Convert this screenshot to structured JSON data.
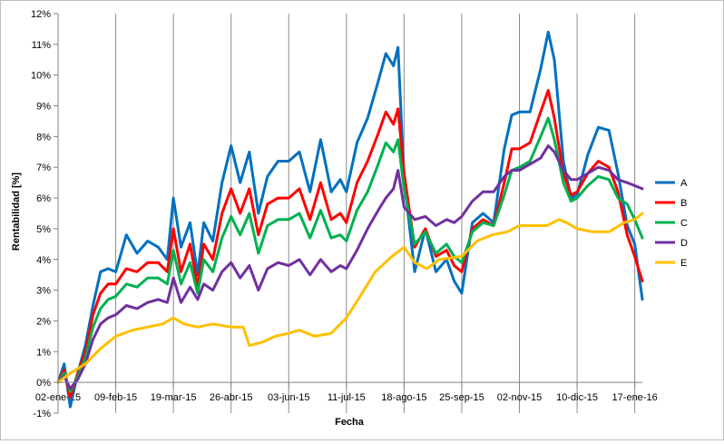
{
  "chart_data": {
    "type": "line",
    "xlabel": "Fecha",
    "ylabel": "Rentabilidad  [%]",
    "ylim": [
      -1,
      12
    ],
    "y_ticks": [
      -1,
      0,
      1,
      2,
      3,
      4,
      5,
      6,
      7,
      8,
      9,
      10,
      11,
      12
    ],
    "y_tick_labels": [
      "-1%",
      "0%",
      "1%",
      "2%",
      "3%",
      "4%",
      "5%",
      "6%",
      "7%",
      "8%",
      "9%",
      "10%",
      "11%",
      "12%"
    ],
    "x_tick_dates": [
      "2015-01-02",
      "2015-02-09",
      "2015-03-19",
      "2015-04-26",
      "2015-06-03",
      "2015-07-11",
      "2015-08-18",
      "2015-09-25",
      "2015-11-02",
      "2015-12-10",
      "2016-01-17"
    ],
    "x_tick_labels": [
      "02-ene-15",
      "09-feb-15",
      "19-mar-15",
      "26-abr-15",
      "03-jun-15",
      "11-jul-15",
      "18-ago-15",
      "25-sep-15",
      "02-nov-15",
      "10-dic-15",
      "17-ene-16"
    ],
    "xlim": [
      "2015-01-02",
      "2016-01-22"
    ],
    "grid": "vertical",
    "legend_position": "right",
    "series": [
      {
        "name": "A",
        "color": "#0070C0",
        "x": [
          "2015-01-02",
          "2015-01-06",
          "2015-01-10",
          "2015-01-15",
          "2015-01-20",
          "2015-01-25",
          "2015-01-30",
          "2015-02-04",
          "2015-02-09",
          "2015-02-16",
          "2015-02-23",
          "2015-03-02",
          "2015-03-09",
          "2015-03-15",
          "2015-03-19",
          "2015-03-24",
          "2015-03-30",
          "2015-04-04",
          "2015-04-08",
          "2015-04-14",
          "2015-04-20",
          "2015-04-26",
          "2015-05-02",
          "2015-05-08",
          "2015-05-14",
          "2015-05-20",
          "2015-05-27",
          "2015-06-03",
          "2015-06-10",
          "2015-06-17",
          "2015-06-24",
          "2015-07-01",
          "2015-07-07",
          "2015-07-11",
          "2015-07-18",
          "2015-07-25",
          "2015-08-01",
          "2015-08-06",
          "2015-08-11",
          "2015-08-14",
          "2015-08-18",
          "2015-08-25",
          "2015-09-01",
          "2015-09-08",
          "2015-09-15",
          "2015-09-20",
          "2015-09-25",
          "2015-10-02",
          "2015-10-09",
          "2015-10-16",
          "2015-10-23",
          "2015-10-28",
          "2015-11-02",
          "2015-11-09",
          "2015-11-16",
          "2015-11-21",
          "2015-11-25",
          "2015-12-01",
          "2015-12-06",
          "2015-12-10",
          "2015-12-17",
          "2015-12-24",
          "2015-12-31",
          "2016-01-06",
          "2016-01-12",
          "2016-01-17",
          "2016-01-22"
        ],
        "values": [
          0,
          0.6,
          -0.8,
          0.3,
          1.2,
          2.5,
          3.6,
          3.7,
          3.6,
          4.8,
          4.2,
          4.6,
          4.4,
          4.0,
          6.0,
          4.4,
          5.2,
          3.5,
          5.2,
          4.6,
          6.5,
          7.7,
          6.5,
          7.5,
          5.5,
          6.7,
          7.2,
          7.2,
          7.5,
          6.2,
          7.9,
          6.2,
          6.6,
          6.2,
          7.8,
          8.6,
          9.8,
          10.7,
          10.3,
          10.9,
          6.6,
          3.6,
          5.0,
          3.6,
          4.0,
          3.3,
          2.9,
          5.2,
          5.5,
          5.2,
          7.6,
          8.7,
          8.8,
          8.8,
          10.2,
          11.4,
          10.5,
          7.2,
          6.0,
          6.1,
          7.4,
          8.3,
          8.2,
          6.8,
          5.1,
          4.5,
          2.7
        ]
      },
      {
        "name": "B",
        "color": "#FF0000",
        "x": [
          "2015-01-02",
          "2015-01-06",
          "2015-01-10",
          "2015-01-15",
          "2015-01-20",
          "2015-01-25",
          "2015-01-30",
          "2015-02-04",
          "2015-02-09",
          "2015-02-16",
          "2015-02-23",
          "2015-03-02",
          "2015-03-09",
          "2015-03-15",
          "2015-03-19",
          "2015-03-24",
          "2015-03-30",
          "2015-04-04",
          "2015-04-08",
          "2015-04-14",
          "2015-04-20",
          "2015-04-26",
          "2015-05-02",
          "2015-05-08",
          "2015-05-14",
          "2015-05-20",
          "2015-05-27",
          "2015-06-03",
          "2015-06-10",
          "2015-06-17",
          "2015-06-24",
          "2015-07-01",
          "2015-07-07",
          "2015-07-11",
          "2015-07-18",
          "2015-07-25",
          "2015-08-01",
          "2015-08-06",
          "2015-08-11",
          "2015-08-14",
          "2015-08-18",
          "2015-08-25",
          "2015-09-01",
          "2015-09-08",
          "2015-09-15",
          "2015-09-20",
          "2015-09-25",
          "2015-10-02",
          "2015-10-09",
          "2015-10-16",
          "2015-10-23",
          "2015-10-28",
          "2015-11-02",
          "2015-11-09",
          "2015-11-16",
          "2015-11-21",
          "2015-11-25",
          "2015-12-01",
          "2015-12-06",
          "2015-12-10",
          "2015-12-17",
          "2015-12-24",
          "2015-12-31",
          "2016-01-06",
          "2016-01-12",
          "2016-01-17",
          "2016-01-22"
        ],
        "values": [
          0,
          0.4,
          -0.5,
          0.3,
          1.0,
          2.2,
          2.9,
          3.2,
          3.2,
          3.7,
          3.6,
          3.9,
          3.9,
          3.6,
          5.0,
          3.6,
          4.5,
          3.1,
          4.5,
          4.0,
          5.5,
          6.3,
          5.5,
          6.3,
          4.8,
          5.8,
          6.0,
          6.0,
          6.3,
          5.3,
          6.5,
          5.3,
          5.5,
          5.2,
          6.5,
          7.2,
          8.1,
          8.8,
          8.4,
          8.9,
          6.8,
          4.4,
          5.0,
          4.1,
          4.3,
          3.8,
          3.6,
          5.0,
          5.3,
          5.1,
          6.5,
          7.6,
          7.6,
          7.8,
          8.8,
          9.5,
          8.6,
          6.8,
          6.1,
          6.2,
          6.8,
          7.2,
          7.0,
          6.2,
          4.8,
          4.1,
          3.3
        ]
      },
      {
        "name": "C",
        "color": "#00B050",
        "x": [
          "2015-01-02",
          "2015-01-06",
          "2015-01-10",
          "2015-01-15",
          "2015-01-20",
          "2015-01-25",
          "2015-01-30",
          "2015-02-04",
          "2015-02-09",
          "2015-02-16",
          "2015-02-23",
          "2015-03-02",
          "2015-03-09",
          "2015-03-15",
          "2015-03-19",
          "2015-03-24",
          "2015-03-30",
          "2015-04-04",
          "2015-04-08",
          "2015-04-14",
          "2015-04-20",
          "2015-04-26",
          "2015-05-02",
          "2015-05-08",
          "2015-05-14",
          "2015-05-20",
          "2015-05-27",
          "2015-06-03",
          "2015-06-10",
          "2015-06-17",
          "2015-06-24",
          "2015-07-01",
          "2015-07-07",
          "2015-07-11",
          "2015-07-18",
          "2015-07-25",
          "2015-08-01",
          "2015-08-06",
          "2015-08-11",
          "2015-08-14",
          "2015-08-18",
          "2015-08-25",
          "2015-09-01",
          "2015-09-08",
          "2015-09-15",
          "2015-09-20",
          "2015-09-25",
          "2015-10-02",
          "2015-10-09",
          "2015-10-16",
          "2015-10-23",
          "2015-10-28",
          "2015-11-02",
          "2015-11-09",
          "2015-11-16",
          "2015-11-21",
          "2015-11-25",
          "2015-12-01",
          "2015-12-06",
          "2015-12-10",
          "2015-12-17",
          "2015-12-24",
          "2015-12-31",
          "2016-01-06",
          "2016-01-12",
          "2016-01-17",
          "2016-01-22"
        ],
        "values": [
          0,
          0.3,
          -0.3,
          0.2,
          0.8,
          1.8,
          2.4,
          2.7,
          2.8,
          3.2,
          3.1,
          3.4,
          3.4,
          3.2,
          4.3,
          3.2,
          3.9,
          2.9,
          4.0,
          3.6,
          4.7,
          5.4,
          4.8,
          5.5,
          4.2,
          5.1,
          5.3,
          5.3,
          5.5,
          4.7,
          5.6,
          4.7,
          4.8,
          4.6,
          5.6,
          6.2,
          7.1,
          7.8,
          7.5,
          7.9,
          6.3,
          4.5,
          4.9,
          4.2,
          4.5,
          4.1,
          3.9,
          4.9,
          5.2,
          5.1,
          6.1,
          6.9,
          7.0,
          7.2,
          8.0,
          8.6,
          7.9,
          6.5,
          5.9,
          6.0,
          6.4,
          6.7,
          6.6,
          6.0,
          5.8,
          5.3,
          4.7
        ]
      },
      {
        "name": "D",
        "color": "#7030A0",
        "x": [
          "2015-01-02",
          "2015-01-06",
          "2015-01-10",
          "2015-01-15",
          "2015-01-20",
          "2015-01-25",
          "2015-01-30",
          "2015-02-04",
          "2015-02-09",
          "2015-02-16",
          "2015-02-23",
          "2015-03-02",
          "2015-03-09",
          "2015-03-15",
          "2015-03-19",
          "2015-03-24",
          "2015-03-30",
          "2015-04-04",
          "2015-04-08",
          "2015-04-14",
          "2015-04-20",
          "2015-04-26",
          "2015-05-02",
          "2015-05-08",
          "2015-05-14",
          "2015-05-20",
          "2015-05-27",
          "2015-06-03",
          "2015-06-10",
          "2015-06-17",
          "2015-06-24",
          "2015-07-01",
          "2015-07-07",
          "2015-07-11",
          "2015-07-18",
          "2015-07-25",
          "2015-08-01",
          "2015-08-06",
          "2015-08-11",
          "2015-08-14",
          "2015-08-18",
          "2015-08-25",
          "2015-09-01",
          "2015-09-08",
          "2015-09-15",
          "2015-09-20",
          "2015-09-25",
          "2015-10-02",
          "2015-10-09",
          "2015-10-16",
          "2015-10-23",
          "2015-10-28",
          "2015-11-02",
          "2015-11-09",
          "2015-11-16",
          "2015-11-21",
          "2015-11-25",
          "2015-12-01",
          "2015-12-06",
          "2015-12-10",
          "2015-12-17",
          "2015-12-24",
          "2015-12-31",
          "2016-01-06",
          "2016-01-12",
          "2016-01-17",
          "2016-01-22"
        ],
        "values": [
          0,
          0.2,
          -0.2,
          0.1,
          0.6,
          1.4,
          1.9,
          2.1,
          2.2,
          2.5,
          2.4,
          2.6,
          2.7,
          2.6,
          3.4,
          2.6,
          3.1,
          2.7,
          3.2,
          3.0,
          3.6,
          3.9,
          3.4,
          3.8,
          3.0,
          3.7,
          3.9,
          3.8,
          4.0,
          3.5,
          4.0,
          3.6,
          3.8,
          3.7,
          4.3,
          5.0,
          5.6,
          6.0,
          6.3,
          6.9,
          5.7,
          5.3,
          5.4,
          5.1,
          5.3,
          5.2,
          5.4,
          5.9,
          6.2,
          6.2,
          6.7,
          6.9,
          6.9,
          7.1,
          7.3,
          7.7,
          7.5,
          6.9,
          6.6,
          6.6,
          6.8,
          7.0,
          6.9,
          6.6,
          6.5,
          6.4,
          6.3
        ]
      },
      {
        "name": "E",
        "color": "#FFC000",
        "x": [
          "2015-01-02",
          "2015-01-10",
          "2015-01-20",
          "2015-01-30",
          "2015-02-09",
          "2015-02-20",
          "2015-03-02",
          "2015-03-12",
          "2015-03-19",
          "2015-03-26",
          "2015-04-04",
          "2015-04-14",
          "2015-04-26",
          "2015-05-04",
          "2015-05-08",
          "2015-05-16",
          "2015-05-25",
          "2015-06-03",
          "2015-06-10",
          "2015-06-20",
          "2015-07-01",
          "2015-07-11",
          "2015-07-20",
          "2015-07-30",
          "2015-08-10",
          "2015-08-18",
          "2015-08-25",
          "2015-09-02",
          "2015-09-10",
          "2015-09-25",
          "2015-10-05",
          "2015-10-15",
          "2015-10-25",
          "2015-11-02",
          "2015-11-10",
          "2015-11-20",
          "2015-11-28",
          "2015-12-03",
          "2015-12-10",
          "2015-12-20",
          "2015-12-31",
          "2016-01-10",
          "2016-01-17",
          "2016-01-22"
        ],
        "values": [
          0,
          0.3,
          0.6,
          1.1,
          1.5,
          1.7,
          1.8,
          1.9,
          2.1,
          1.9,
          1.8,
          1.9,
          1.8,
          1.8,
          1.2,
          1.3,
          1.5,
          1.6,
          1.7,
          1.5,
          1.6,
          2.1,
          2.8,
          3.6,
          4.1,
          4.4,
          3.9,
          3.7,
          4.0,
          4.1,
          4.6,
          4.8,
          4.9,
          5.1,
          5.1,
          5.1,
          5.3,
          5.2,
          5.0,
          4.9,
          4.9,
          5.2,
          5.3,
          5.5
        ]
      }
    ]
  }
}
